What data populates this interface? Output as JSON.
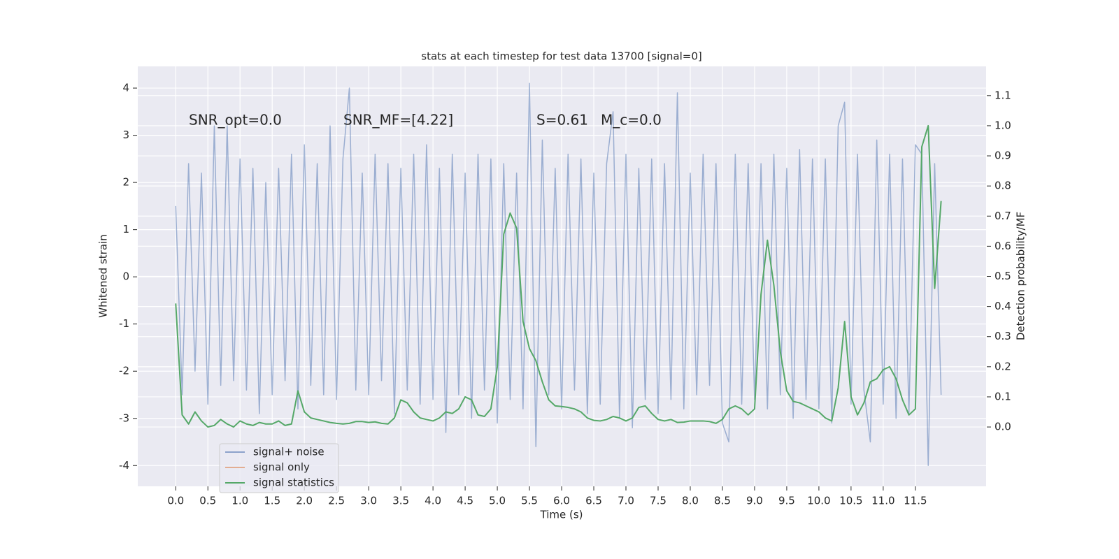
{
  "chart_data": {
    "type": "line",
    "title": "stats at each timestep for test data 13700 [signal=0]",
    "xlabel": "Time (s)",
    "ylabel": "Whitened strain",
    "y2label": "Detection probability/MF",
    "annotations": [
      "SNR_opt=0.0",
      "SNR_MF=[4.22]",
      "S=0.61",
      "M_c=0.0"
    ],
    "grid": true,
    "legend": "lower left",
    "xlim": [
      -0.59,
      12.6
    ],
    "ylim": [
      -4.44,
      4.46
    ],
    "y2lim": [
      -0.197,
      1.197
    ],
    "xticks": [
      {
        "value": 0,
        "label": "0.0"
      },
      0.5,
      {
        "value": 1,
        "label": "1.0"
      },
      1.5,
      {
        "value": 2,
        "label": "2.0"
      },
      2.5,
      {
        "value": 3,
        "label": "3.0"
      },
      3.5,
      {
        "value": 4,
        "label": "4.0"
      },
      4.5,
      {
        "value": 5,
        "label": "5.0"
      },
      5.5,
      {
        "value": 6,
        "label": "6.0"
      },
      6.5,
      {
        "value": 7,
        "label": "7.0"
      },
      7.5,
      {
        "value": 8,
        "label": "8.0"
      },
      8.5,
      {
        "value": 9,
        "label": "9.0"
      },
      9.5,
      {
        "value": 10,
        "label": "10.0"
      },
      10.5,
      {
        "value": 11,
        "label": "11.0"
      },
      11.5
    ],
    "yticks": [
      -4,
      -3,
      -2,
      -1,
      0,
      1,
      2,
      3,
      4
    ],
    "y2ticks": [
      {
        "value": 0,
        "label": "0.0"
      },
      0.1,
      0.2,
      0.3,
      0.4,
      0.5,
      0.6,
      0.7,
      0.8,
      0.9,
      {
        "value": 1,
        "label": "1.0"
      },
      1.1
    ],
    "x": [
      0,
      0.1,
      0.2,
      0.3,
      0.4,
      0.5,
      0.6,
      0.7,
      0.8,
      0.9,
      1,
      1.1,
      1.2,
      1.3,
      1.4,
      1.5,
      1.6,
      1.7,
      1.8,
      1.9,
      2,
      2.1,
      2.2,
      2.3,
      2.4,
      2.5,
      2.6,
      2.7,
      2.8,
      2.9,
      3,
      3.1,
      3.2,
      3.3,
      3.4,
      3.5,
      3.6,
      3.7,
      3.8,
      3.9,
      4,
      4.1,
      4.2,
      4.3,
      4.4,
      4.5,
      4.6,
      4.7,
      4.8,
      4.9,
      5,
      5.1,
      5.2,
      5.3,
      5.4,
      5.5,
      5.6,
      5.7,
      5.8,
      5.9,
      6,
      6.1,
      6.2,
      6.3,
      6.4,
      6.5,
      6.6,
      6.7,
      6.8,
      6.9,
      7,
      7.1,
      7.2,
      7.3,
      7.4,
      7.5,
      7.6,
      7.7,
      7.8,
      7.9,
      8,
      8.1,
      8.2,
      8.3,
      8.4,
      8.5,
      8.6,
      8.7,
      8.8,
      8.9,
      9,
      9.1,
      9.2,
      9.3,
      9.4,
      9.5,
      9.6,
      9.7,
      9.8,
      9.9,
      10,
      10.1,
      10.2,
      10.3,
      10.4,
      10.5,
      10.6,
      10.7,
      10.8,
      10.9,
      11,
      11.1,
      11.2,
      11.3,
      11.4,
      11.5,
      11.6,
      11.7,
      11.8,
      11.9
    ],
    "series": [
      {
        "name": "signal+ noise",
        "color": "#4c72b0",
        "values": [
          1.5,
          -2.5,
          2.4,
          -2.0,
          2.2,
          -2.7,
          3.2,
          -2.3,
          3.2,
          -2.2,
          2.5,
          -2.4,
          2.3,
          -2.9,
          2.0,
          -2.5,
          2.3,
          -2.2,
          2.6,
          -2.8,
          2.8,
          -2.3,
          2.4,
          -2.5,
          3.2,
          -2.6,
          2.5,
          4.0,
          -2.4,
          2.2,
          -2.5,
          2.6,
          -2.2,
          2.4,
          -2.9,
          2.3,
          -2.4,
          2.6,
          -2.7,
          2.8,
          -2.6,
          2.3,
          -3.3,
          2.6,
          -2.5,
          2.2,
          -3.0,
          2.6,
          -2.4,
          2.5,
          -3.1,
          2.4,
          -2.6,
          2.2,
          -2.8,
          4.1,
          -3.6,
          2.9,
          -2.5,
          2.3,
          -2.8,
          2.6,
          -2.4,
          2.5,
          -2.9,
          2.2,
          -2.7,
          2.4,
          3.5,
          -3.0,
          2.6,
          -3.2,
          2.3,
          -2.6,
          2.5,
          -2.9,
          2.4,
          -2.6,
          3.9,
          -2.8,
          2.2,
          -2.5,
          2.6,
          -2.3,
          2.4,
          -3.1,
          -3.5,
          2.6,
          -2.7,
          2.4,
          -2.6,
          2.4,
          -2.8,
          2.6,
          -2.5,
          2.3,
          -3.0,
          2.7,
          -2.6,
          2.5,
          -2.8,
          2.5,
          -3.1,
          3.2,
          3.7,
          -2.7,
          2.6,
          -2.4,
          -3.5,
          2.9,
          -2.7,
          2.6,
          -3.0,
          2.5,
          -2.9,
          2.8,
          2.6,
          -4.0,
          2.4,
          -2.5
        ]
      },
      {
        "name": "signal only",
        "color": "#dd8452",
        "values": [
          null,
          null,
          null,
          null,
          null,
          null,
          null,
          null,
          null,
          null,
          null,
          null,
          null,
          null,
          null,
          null,
          null,
          null,
          null,
          null,
          null,
          null,
          null,
          null,
          null,
          null,
          null,
          null,
          null,
          null,
          null,
          null,
          null,
          null,
          null,
          null,
          null,
          null,
          null,
          null,
          null,
          null,
          null,
          null,
          null,
          null,
          null,
          null,
          null,
          null,
          null,
          null,
          null,
          null,
          null,
          null,
          null,
          null,
          null,
          null,
          null,
          null,
          null,
          null,
          null,
          null,
          null,
          null,
          null,
          null,
          null,
          null,
          null,
          null,
          null,
          null,
          null,
          null,
          null,
          null,
          null,
          null,
          null,
          null,
          null,
          null,
          null,
          null,
          null,
          null,
          null,
          null,
          null,
          null,
          null,
          null,
          null,
          null,
          null,
          null,
          null,
          null,
          null,
          null,
          null,
          null,
          null,
          null,
          null,
          null,
          null,
          null,
          null,
          null,
          null,
          null,
          null,
          null,
          null,
          null
        ]
      },
      {
        "name": "signal statistics",
        "color": "#55a868",
        "axis": "y2",
        "values": [
          0.41,
          0.04,
          0.01,
          0.05,
          0.02,
          0.0,
          0.005,
          0.025,
          0.01,
          0.0,
          0.02,
          0.01,
          0.005,
          0.015,
          0.01,
          0.01,
          0.02,
          0.005,
          0.01,
          0.12,
          0.05,
          0.03,
          0.025,
          0.02,
          0.015,
          0.012,
          0.01,
          0.012,
          0.018,
          0.018,
          0.015,
          0.017,
          0.012,
          0.01,
          0.03,
          0.09,
          0.08,
          0.05,
          0.03,
          0.025,
          0.02,
          0.03,
          0.05,
          0.045,
          0.06,
          0.1,
          0.09,
          0.04,
          0.035,
          0.06,
          0.2,
          0.64,
          0.71,
          0.66,
          0.35,
          0.26,
          0.22,
          0.15,
          0.09,
          0.07,
          0.068,
          0.065,
          0.06,
          0.05,
          0.03,
          0.022,
          0.02,
          0.025,
          0.035,
          0.03,
          0.02,
          0.03,
          0.065,
          0.07,
          0.045,
          0.025,
          0.02,
          0.025,
          0.015,
          0.016,
          0.02,
          0.02,
          0.02,
          0.018,
          0.012,
          0.025,
          0.06,
          0.07,
          0.06,
          0.04,
          0.06,
          0.44,
          0.62,
          0.47,
          0.25,
          0.12,
          0.085,
          0.08,
          0.07,
          0.06,
          0.05,
          0.03,
          0.02,
          0.13,
          0.35,
          0.1,
          0.04,
          0.08,
          0.15,
          0.16,
          0.19,
          0.2,
          0.16,
          0.09,
          0.04,
          0.06,
          0.93,
          1.0,
          0.46,
          0.75
        ]
      }
    ]
  }
}
